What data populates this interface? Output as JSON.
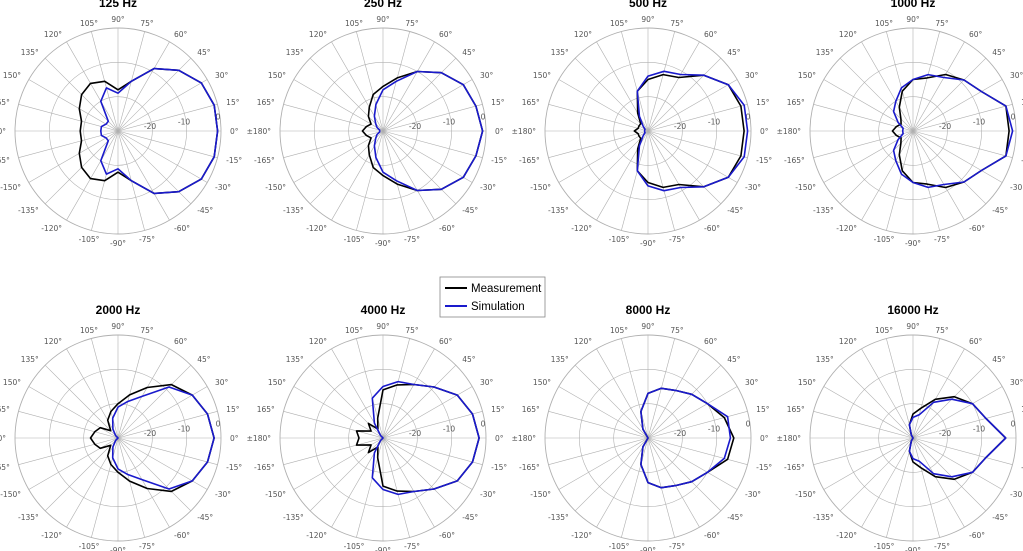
{
  "chart_data": [
    {
      "type": "polar",
      "title": "125 Hz",
      "rticks": [
        -20,
        -10,
        0
      ],
      "rlim": [
        -30,
        0
      ],
      "theta_ticks": [
        105,
        90,
        75,
        60,
        45,
        30,
        15,
        0,
        -15,
        -30,
        -45,
        -60,
        -75,
        -90,
        -105,
        -120,
        -135,
        -150,
        -165,
        180,
        165,
        150,
        135,
        120
      ],
      "series": [
        {
          "name": "Measurement",
          "theta": [
            0,
            15,
            30,
            45,
            60,
            75,
            90,
            105,
            120,
            135,
            150,
            165,
            180,
            -165,
            -150,
            -135,
            -120,
            -105,
            -90,
            -75,
            -60,
            -45,
            -30,
            -15
          ],
          "r": [
            -1,
            -1,
            -2,
            -5,
            -9,
            -15,
            -18,
            -15,
            -14,
            -15,
            -17,
            -19,
            -19,
            -19,
            -17,
            -15,
            -14,
            -15,
            -18,
            -15,
            -9,
            -5,
            -2,
            -1
          ]
        },
        {
          "name": "Simulation",
          "theta": [
            0,
            15,
            30,
            45,
            60,
            75,
            90,
            105,
            120,
            135,
            150,
            165,
            180,
            -165,
            -150,
            -135,
            -120,
            -105,
            -90,
            -75,
            -60,
            -45,
            -30,
            -15
          ],
          "r": [
            -1,
            -1,
            -2,
            -5,
            -9,
            -15,
            -19,
            -17,
            -20,
            -26,
            -26,
            -25,
            -25,
            -25,
            -26,
            -26,
            -20,
            -17,
            -19,
            -15,
            -9,
            -5,
            -2,
            -1
          ]
        }
      ]
    },
    {
      "type": "polar",
      "title": "250 Hz",
      "rticks": [
        -20,
        -10,
        0
      ],
      "rlim": [
        -30,
        0
      ],
      "theta_ticks": [
        105,
        90,
        75,
        60,
        45,
        30,
        15,
        0,
        -15,
        -30,
        -45,
        -60,
        -75,
        -90,
        -105,
        -120,
        -135,
        -150,
        -165,
        180,
        165,
        150,
        135,
        120
      ],
      "series": [
        {
          "name": "Measurement",
          "theta": [
            0,
            15,
            30,
            45,
            60,
            75,
            90,
            105,
            120,
            135,
            150,
            165,
            180,
            -165,
            -150,
            -135,
            -120,
            -105,
            -90,
            -75,
            -60,
            -45,
            -30,
            -15
          ],
          "r": [
            -1,
            -2,
            -3,
            -6,
            -10,
            -14,
            -17,
            -19,
            -22,
            -24,
            -26,
            -25,
            -24,
            -25,
            -26,
            -24,
            -22,
            -19,
            -17,
            -14,
            -10,
            -6,
            -3,
            -2
          ]
        },
        {
          "name": "Simulation",
          "theta": [
            0,
            15,
            30,
            45,
            60,
            75,
            90,
            105,
            120,
            135,
            150,
            165,
            180,
            -165,
            -150,
            -135,
            -120,
            -105,
            -90,
            -75,
            -60,
            -45,
            -30,
            -15
          ],
          "r": [
            -1,
            -2,
            -3,
            -6,
            -10,
            -15,
            -18,
            -22,
            -25,
            -27,
            -28,
            -29,
            -29,
            -29,
            -28,
            -27,
            -25,
            -22,
            -18,
            -15,
            -10,
            -6,
            -3,
            -2
          ]
        }
      ]
    },
    {
      "type": "polar",
      "title": "500 Hz",
      "rticks": [
        -20,
        -10,
        0
      ],
      "rlim": [
        -30,
        0
      ],
      "theta_ticks": [
        105,
        90,
        75,
        60,
        45,
        30,
        15,
        0,
        -15,
        -30,
        -45,
        -60,
        -75,
        -90,
        -105,
        -120,
        -135,
        -150,
        -165,
        180,
        165,
        150,
        135,
        120
      ],
      "series": [
        {
          "name": "Measurement",
          "theta": [
            0,
            15,
            30,
            45,
            60,
            75,
            90,
            105,
            120,
            135,
            150,
            165,
            180,
            -165,
            -150,
            -135,
            -120,
            -105,
            -90,
            -75,
            -60,
            -45,
            -30,
            -15
          ],
          "r": [
            -2,
            -2,
            -3,
            -7,
            -12,
            -13,
            -15,
            -18,
            -24,
            -27,
            -27,
            -27,
            -26,
            -27,
            -27,
            -27,
            -24,
            -18,
            -15,
            -13,
            -12,
            -7,
            -3,
            -2
          ]
        },
        {
          "name": "Simulation",
          "theta": [
            0,
            15,
            30,
            45,
            60,
            75,
            90,
            105,
            120,
            135,
            150,
            165,
            180,
            -165,
            -150,
            -135,
            -120,
            -105,
            -90,
            -75,
            -60,
            -45,
            -30,
            -15
          ],
          "r": [
            -1,
            -1,
            -3,
            -7,
            -11,
            -12,
            -14,
            -18,
            -25,
            -28,
            -29,
            -29,
            -29,
            -29,
            -29,
            -28,
            -25,
            -18,
            -14,
            -12,
            -11,
            -7,
            -3,
            -1
          ]
        }
      ]
    },
    {
      "type": "polar",
      "title": "1000 Hz",
      "rticks": [
        -20,
        -10,
        0
      ],
      "rlim": [
        -30,
        0
      ],
      "theta_ticks": [
        105,
        90,
        75,
        60,
        45,
        30,
        15,
        0,
        -15,
        -30,
        -45,
        -60,
        -75,
        -90,
        -105,
        -120,
        -135,
        -150,
        -165,
        180,
        165,
        150,
        135,
        120
      ],
      "series": [
        {
          "name": "Measurement",
          "theta": [
            0,
            15,
            30,
            45,
            60,
            75,
            90,
            105,
            120,
            135,
            150,
            165,
            180,
            -165,
            -150,
            -135,
            -120,
            -105,
            -90,
            -75,
            -60,
            -45,
            -30,
            -15
          ],
          "r": [
            -2,
            -2,
            -7,
            -9,
            -11,
            -14,
            -15,
            -18,
            -22,
            -25,
            -26,
            -25,
            -24,
            -25,
            -26,
            -25,
            -22,
            -18,
            -15,
            -14,
            -11,
            -9,
            -7,
            -2
          ]
        },
        {
          "name": "Simulation",
          "theta": [
            0,
            15,
            30,
            45,
            60,
            75,
            90,
            105,
            120,
            135,
            150,
            165,
            180,
            -165,
            -150,
            -135,
            -120,
            -105,
            -90,
            -75,
            -60,
            -45,
            -30,
            -15
          ],
          "r": [
            -1,
            -2,
            -7,
            -9,
            -12,
            -13,
            -15,
            -17,
            -20,
            -22,
            -25,
            -27,
            -27,
            -27,
            -25,
            -22,
            -20,
            -17,
            -15,
            -13,
            -12,
            -9,
            -7,
            -2
          ]
        }
      ]
    },
    {
      "type": "polar",
      "title": "2000 Hz",
      "rticks": [
        -20,
        -10,
        0
      ],
      "rlim": [
        -30,
        0
      ],
      "theta_ticks": [
        105,
        90,
        75,
        60,
        45,
        30,
        15,
        0,
        -15,
        -30,
        -45,
        -60,
        -75,
        -90,
        -105,
        -120,
        -135,
        -150,
        -165,
        180,
        165,
        150,
        135,
        120
      ],
      "series": [
        {
          "name": "Measurement",
          "theta": [
            0,
            15,
            30,
            45,
            60,
            75,
            90,
            105,
            120,
            135,
            150,
            165,
            180,
            -165,
            -150,
            -135,
            -120,
            -105,
            -90,
            -75,
            -60,
            -45,
            -30,
            -15
          ],
          "r": [
            -2,
            -3,
            -5,
            -8,
            -13,
            -17,
            -20,
            -22,
            -24,
            -27,
            -24,
            -23,
            -22,
            -23,
            -24,
            -27,
            -24,
            -22,
            -20,
            -17,
            -13,
            -8,
            -5,
            -3
          ]
        },
        {
          "name": "Simulation",
          "theta": [
            0,
            15,
            30,
            45,
            60,
            75,
            90,
            105,
            120,
            135,
            150,
            165,
            180,
            -165,
            -150,
            -135,
            -120,
            -105,
            -90,
            -75,
            -60,
            -45,
            -30,
            -15
          ],
          "r": [
            -2,
            -3,
            -5,
            -9,
            -16,
            -19,
            -21,
            -24,
            -27,
            -29,
            -30,
            -30,
            -30,
            -30,
            -30,
            -29,
            -27,
            -24,
            -21,
            -19,
            -16,
            -9,
            -5,
            -3
          ]
        }
      ]
    },
    {
      "type": "polar",
      "title": "4000 Hz",
      "rticks": [
        -20,
        -10,
        0
      ],
      "rlim": [
        -30,
        0
      ],
      "theta_ticks": [
        105,
        90,
        75,
        60,
        45,
        30,
        15,
        0,
        -15,
        -30,
        -45,
        -60,
        -75,
        -90,
        -105,
        -120,
        -135,
        -150,
        -165,
        180,
        165,
        150,
        135,
        120
      ],
      "series": [
        {
          "name": "Measurement",
          "theta": [
            0,
            15,
            30,
            45,
            60,
            75,
            90,
            105,
            120,
            135,
            150,
            165,
            180,
            -165,
            -150,
            -135,
            -120,
            -105,
            -90,
            -75,
            -60,
            -45,
            -30,
            -15
          ],
          "r": [
            -2,
            -3,
            -5,
            -9,
            -12,
            -14,
            -16,
            -24,
            -27,
            -24,
            -26,
            -22,
            -23,
            -22,
            -26,
            -24,
            -27,
            -24,
            -16,
            -14,
            -12,
            -9,
            -5,
            -3
          ]
        },
        {
          "name": "Simulation",
          "theta": [
            0,
            15,
            30,
            45,
            60,
            75,
            90,
            105,
            120,
            135,
            150,
            165,
            180,
            -165,
            -150,
            -135,
            -120,
            -105,
            -90,
            -75,
            -60,
            -45,
            -30,
            -15
          ],
          "r": [
            -2,
            -3,
            -5,
            -9,
            -12,
            -13,
            -15,
            -18,
            -25,
            -29,
            -30,
            -30,
            -30,
            -30,
            -30,
            -29,
            -25,
            -18,
            -15,
            -13,
            -12,
            -9,
            -5,
            -3
          ]
        }
      ]
    },
    {
      "type": "polar",
      "title": "8000 Hz",
      "rticks": [
        -20,
        -10,
        0
      ],
      "rlim": [
        -30,
        0
      ],
      "theta_ticks": [
        105,
        90,
        75,
        60,
        45,
        30,
        15,
        0,
        -15,
        -30,
        -45,
        -60,
        -75,
        -90,
        -105,
        -120,
        -135,
        -150,
        -165,
        180,
        165,
        150,
        135,
        120
      ],
      "series": [
        {
          "name": "Measurement",
          "theta": [
            0,
            15,
            30,
            45,
            60,
            75,
            90,
            105,
            120,
            135,
            150,
            165,
            180,
            -165,
            -150,
            -135,
            -120,
            -105,
            -90,
            -75,
            -60,
            -45,
            -30,
            -15
          ],
          "r": [
            -5,
            -7,
            -10,
            -12,
            -14,
            -15,
            -17,
            -22,
            -27,
            -30,
            -30,
            -30,
            -30,
            -30,
            -30,
            -30,
            -27,
            -22,
            -17,
            -15,
            -14,
            -12,
            -10,
            -6
          ]
        },
        {
          "name": "Simulation",
          "theta": [
            0,
            15,
            30,
            45,
            60,
            75,
            90,
            105,
            120,
            135,
            150,
            165,
            180,
            -165,
            -150,
            -135,
            -120,
            -105,
            -90,
            -75,
            -60,
            -45,
            -30,
            -15
          ],
          "r": [
            -6,
            -6,
            -10,
            -12,
            -14,
            -15,
            -17,
            -22,
            -27,
            -30,
            -30,
            -30,
            -30,
            -30,
            -30,
            -30,
            -27,
            -22,
            -17,
            -15,
            -14,
            -12,
            -10,
            -7
          ]
        }
      ]
    },
    {
      "type": "polar",
      "title": "16000 Hz",
      "rticks": [
        -20,
        -10,
        0
      ],
      "rlim": [
        -30,
        0
      ],
      "theta_ticks": [
        105,
        90,
        75,
        60,
        45,
        30,
        15,
        0,
        -15,
        -30,
        -45,
        -60,
        -75,
        -90,
        -105,
        -120,
        -135,
        -150,
        -165,
        180,
        165,
        150,
        135,
        120
      ],
      "series": [
        {
          "name": "Measurement",
          "theta": [
            0,
            15,
            30,
            45,
            60,
            75,
            90,
            105,
            120,
            135,
            150,
            165,
            180,
            -165,
            -150,
            -135,
            -120,
            -105,
            -90,
            -75,
            -60,
            -45,
            -30,
            -15
          ],
          "r": [
            -3,
            -8,
            -10,
            -13,
            -17,
            -21,
            -23,
            -26,
            -29,
            -30,
            -30,
            -30,
            -30,
            -30,
            -30,
            -30,
            -29,
            -26,
            -23,
            -21,
            -17,
            -13,
            -10,
            -8
          ]
        },
        {
          "name": "Simulation",
          "theta": [
            0,
            15,
            30,
            45,
            60,
            75,
            90,
            105,
            120,
            135,
            150,
            165,
            180,
            -165,
            -150,
            -135,
            -120,
            -105,
            -90,
            -75,
            -60,
            -45,
            -30,
            -15
          ],
          "r": [
            -3,
            -8,
            -10,
            -14,
            -18,
            -23,
            -24,
            -26,
            -29,
            -30,
            -30,
            -30,
            -30,
            -30,
            -30,
            -30,
            -29,
            -26,
            -24,
            -23,
            -18,
            -14,
            -10,
            -8
          ]
        }
      ]
    }
  ],
  "legend": {
    "items": [
      {
        "label": "Measurement",
        "color": "#000000"
      },
      {
        "label": "Simulation",
        "color": "#1a1acc"
      }
    ]
  },
  "styles": {
    "grid_color": "#b0b0b0",
    "measurement_color": "#000000",
    "simulation_color": "#1a1acc"
  }
}
